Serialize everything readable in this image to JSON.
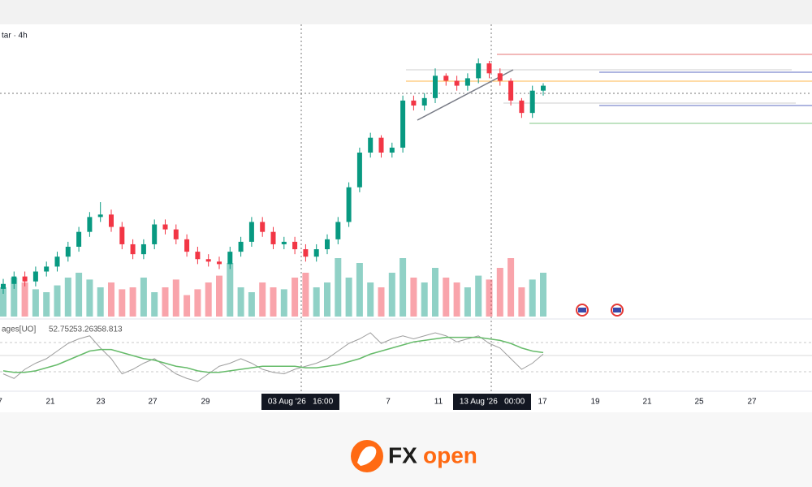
{
  "chart_data": {
    "type": "candlestick",
    "title": "tar · 4h",
    "up_color": "#089981",
    "down_color": "#f23645",
    "x_axis_labels": [
      "7",
      "21",
      "23",
      "27",
      "29",
      "7",
      "11",
      "17",
      "19",
      "21",
      "25",
      "27"
    ],
    "crosshair_labels": [
      "03 Aug '26   16:00",
      "13 Aug '26   00:00"
    ],
    "open": [
      15,
      17,
      20,
      18,
      22,
      24,
      28,
      32,
      38,
      44,
      45,
      40,
      33,
      29,
      33,
      41,
      39,
      35,
      30,
      27,
      26,
      25,
      30,
      34,
      42,
      38,
      33,
      34,
      31,
      28,
      31,
      35,
      42,
      56,
      70,
      76,
      70,
      72,
      91,
      89,
      92,
      101,
      99,
      97,
      100,
      106,
      102,
      99,
      91,
      86,
      95
    ],
    "high": [
      19,
      22,
      22,
      24,
      26,
      30,
      34,
      40,
      46,
      50,
      47,
      42,
      35,
      35,
      43,
      43,
      41,
      37,
      32,
      29,
      28,
      32,
      36,
      44,
      44,
      40,
      36,
      36,
      33,
      33,
      37,
      44,
      58,
      72,
      78,
      77,
      74,
      93,
      93,
      94,
      104,
      102,
      101,
      102,
      108,
      107,
      104,
      100,
      92,
      97,
      98
    ],
    "low": [
      13,
      15,
      16,
      16,
      20,
      22,
      26,
      30,
      36,
      42,
      38,
      31,
      27,
      27,
      31,
      37,
      33,
      28,
      25,
      24,
      23,
      23,
      28,
      32,
      36,
      31,
      31,
      29,
      26,
      26,
      29,
      33,
      40,
      54,
      68,
      68,
      68,
      70,
      87,
      87,
      90,
      97,
      95,
      95,
      98,
      100,
      97,
      89,
      84,
      84,
      93
    ],
    "close": [
      17,
      20,
      18,
      22,
      24,
      28,
      32,
      38,
      44,
      45,
      40,
      33,
      29,
      33,
      41,
      39,
      35,
      30,
      27,
      26,
      25,
      30,
      34,
      42,
      38,
      33,
      34,
      31,
      28,
      31,
      35,
      42,
      56,
      70,
      76,
      70,
      72,
      91,
      89,
      92,
      101,
      99,
      97,
      100,
      106,
      102,
      99,
      91,
      86,
      95,
      97
    ],
    "volume": [
      30,
      40,
      35,
      28,
      25,
      32,
      40,
      45,
      38,
      30,
      35,
      28,
      30,
      40,
      25,
      30,
      38,
      22,
      28,
      35,
      42,
      55,
      30,
      25,
      35,
      30,
      28,
      40,
      45,
      30,
      35,
      60,
      40,
      55,
      35,
      30,
      45,
      60,
      40,
      35,
      50,
      40,
      35,
      30,
      42,
      38,
      50,
      60,
      30,
      38,
      45
    ],
    "indicator": {
      "name": "ages[UO]",
      "legend_values": [
        "52.752",
        "53.263",
        "58.813"
      ],
      "series": [
        {
          "color": "#9e9e9e",
          "values": [
            45,
            42,
            48,
            52,
            55,
            60,
            65,
            68,
            70,
            62,
            55,
            45,
            48,
            52,
            55,
            50,
            45,
            42,
            40,
            45,
            50,
            52,
            55,
            52,
            48,
            46,
            45,
            48,
            50,
            52,
            55,
            60,
            65,
            68,
            72,
            65,
            68,
            70,
            68,
            70,
            72,
            70,
            66,
            68,
            70,
            65,
            62,
            55,
            48,
            52,
            58
          ]
        },
        {
          "color": "#66bb6a",
          "values": [
            47,
            46,
            46,
            47,
            49,
            51,
            54,
            57,
            60,
            61,
            61,
            59,
            57,
            55,
            54,
            52,
            50,
            49,
            47,
            46,
            46,
            47,
            48,
            49,
            50,
            50,
            50,
            50,
            49,
            49,
            50,
            51,
            53,
            55,
            58,
            60,
            62,
            64,
            66,
            67,
            68,
            69,
            69,
            69,
            69,
            68,
            67,
            65,
            62,
            60,
            59
          ]
        }
      ]
    }
  },
  "branding": {
    "logo_part_1": "FX",
    "logo_part_2": "open"
  }
}
